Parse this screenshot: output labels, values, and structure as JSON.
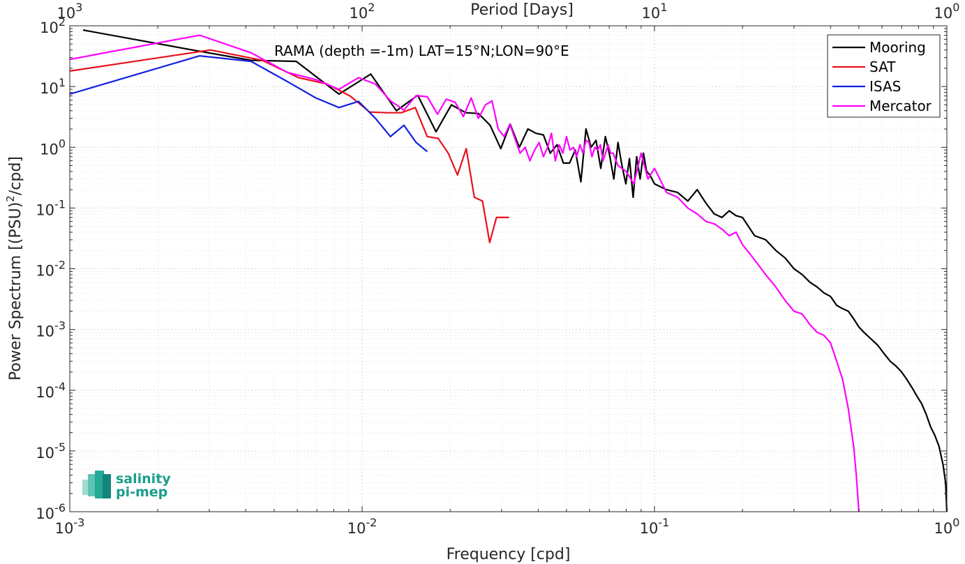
{
  "chart_data": {
    "type": "line",
    "title": "",
    "annotation": "RAMA (depth =-1m) LAT=15°N;LON=90°E",
    "xlabel": "Frequency [cpd]",
    "ylabel": "Power Spectrum [(PSU)²/cpd]",
    "x2label": "Period [Days]",
    "xscale": "log",
    "yscale": "log",
    "xlim": [
      0.001,
      1
    ],
    "ylim": [
      1e-06,
      100
    ],
    "grid": true,
    "minor_grid": true,
    "legend_position": "top-right",
    "x_tick_labels": [
      "10-3",
      "10-2",
      "10-1",
      "100"
    ],
    "x2_tick_labels": [
      "103",
      "102",
      "101",
      "100"
    ],
    "y_tick_labels": [
      "102",
      "101",
      "100",
      "10-1",
      "10-2",
      "10-3",
      "10-4",
      "10-5",
      "10-6"
    ],
    "series": [
      {
        "name": "Mooring",
        "color": "#000000",
        "x": [
          0.00111,
          0.00278,
          0.00417,
          0.00595,
          0.00833,
          0.0107,
          0.0131,
          0.0155,
          0.0179,
          0.0202,
          0.0226,
          0.025,
          0.0274,
          0.0298,
          0.0321,
          0.0345,
          0.0369,
          0.0393,
          0.0417,
          0.044,
          0.0464,
          0.0488,
          0.0512,
          0.0536,
          0.056,
          0.0583,
          0.0607,
          0.0631,
          0.0655,
          0.0679,
          0.0702,
          0.0726,
          0.075,
          0.0774,
          0.0798,
          0.0821,
          0.0845,
          0.0869,
          0.0893,
          0.0917,
          0.094,
          0.0964,
          0.1,
          0.11,
          0.12,
          0.13,
          0.14,
          0.15,
          0.16,
          0.17,
          0.18,
          0.19,
          0.2,
          0.22,
          0.24,
          0.26,
          0.28,
          0.3,
          0.32,
          0.34,
          0.36,
          0.38,
          0.4,
          0.42,
          0.44,
          0.46,
          0.48,
          0.5,
          0.52,
          0.55,
          0.58,
          0.61,
          0.64,
          0.67,
          0.7,
          0.73,
          0.76,
          0.79,
          0.82,
          0.85,
          0.88,
          0.91,
          0.94,
          0.97,
          0.99,
          1.0
        ],
        "values": [
          85,
          38,
          27,
          26,
          7.5,
          16,
          4,
          7.2,
          1.8,
          5,
          3.7,
          3.6,
          2.3,
          0.95,
          2.4,
          1.0,
          2.0,
          1.7,
          1.6,
          0.8,
          1.1,
          0.55,
          0.55,
          0.9,
          0.27,
          2.0,
          1.0,
          1.3,
          0.45,
          1.5,
          0.75,
          0.3,
          1.2,
          0.5,
          0.25,
          0.65,
          0.15,
          0.7,
          0.3,
          0.8,
          0.4,
          0.35,
          0.25,
          0.2,
          0.18,
          0.13,
          0.2,
          0.12,
          0.08,
          0.07,
          0.09,
          0.075,
          0.07,
          0.035,
          0.03,
          0.02,
          0.015,
          0.01,
          0.008,
          0.006,
          0.005,
          0.004,
          0.0035,
          0.0025,
          0.0022,
          0.002,
          0.0015,
          0.0011,
          0.0009,
          0.0007,
          0.00055,
          0.0004,
          0.0003,
          0.00025,
          0.0002,
          0.00015,
          0.00011,
          8e-05,
          6e-05,
          4e-05,
          2.5e-05,
          1.8e-05,
          1.2e-05,
          6e-06,
          3e-06,
          1e-06
        ]
      },
      {
        "name": "SAT",
        "color": "#e8101c",
        "x": [
          0.001,
          0.00303,
          0.00455,
          0.00606,
          0.00758,
          0.00909,
          0.0106,
          0.0121,
          0.0136,
          0.0152,
          0.0167,
          0.0182,
          0.0197,
          0.0212,
          0.0227,
          0.0242,
          0.0258,
          0.0273,
          0.0288,
          0.0303,
          0.0318
        ],
        "values": [
          18,
          40,
          27,
          14,
          11,
          7,
          3.8,
          3.7,
          3.7,
          4.5,
          1.5,
          1.4,
          0.8,
          0.35,
          0.95,
          0.15,
          0.13,
          0.027,
          0.07,
          0.07,
          0.07
        ]
      },
      {
        "name": "ISAS",
        "color": "#1020e0",
        "x": [
          0.001,
          0.00278,
          0.00417,
          0.00556,
          0.00694,
          0.00833,
          0.00972,
          0.0111,
          0.0125,
          0.0139,
          0.0153,
          0.0167
        ],
        "values": [
          7.5,
          32,
          26,
          12,
          6.5,
          4.5,
          5.7,
          3.0,
          1.5,
          2.3,
          1.2,
          0.85
        ]
      },
      {
        "name": "Mercator",
        "color": "#ff00ff",
        "x": [
          0.001,
          0.00278,
          0.00417,
          0.00556,
          0.00694,
          0.00833,
          0.00972,
          0.0111,
          0.0125,
          0.0139,
          0.0153,
          0.0167,
          0.0181,
          0.0194,
          0.0208,
          0.0222,
          0.0236,
          0.025,
          0.0264,
          0.0278,
          0.0292,
          0.0306,
          0.032,
          0.0333,
          0.0347,
          0.0361,
          0.0375,
          0.0389,
          0.0403,
          0.0417,
          0.0431,
          0.0444,
          0.0458,
          0.0472,
          0.0486,
          0.05,
          0.0514,
          0.0528,
          0.0542,
          0.0556,
          0.0569,
          0.0583,
          0.0597,
          0.0611,
          0.0625,
          0.0639,
          0.0653,
          0.0667,
          0.068,
          0.0694,
          0.0708,
          0.0722,
          0.075,
          0.08,
          0.085,
          0.09,
          0.095,
          0.1,
          0.11,
          0.12,
          0.13,
          0.14,
          0.15,
          0.16,
          0.17,
          0.18,
          0.19,
          0.2,
          0.22,
          0.24,
          0.26,
          0.28,
          0.3,
          0.32,
          0.34,
          0.36,
          0.38,
          0.4,
          0.42,
          0.44,
          0.46,
          0.48,
          0.49,
          0.5
        ],
        "values": [
          28,
          70,
          36,
          17,
          13,
          9,
          14,
          11,
          5.8,
          4.1,
          7.1,
          6.8,
          3.5,
          6.2,
          5.5,
          3.2,
          6.5,
          3.0,
          5.0,
          5.8,
          2.0,
          1.5,
          2.4,
          1.4,
          0.8,
          1.0,
          0.6,
          0.9,
          1.2,
          0.7,
          1.0,
          1.7,
          0.6,
          1.1,
          0.8,
          1.5,
          0.9,
          1.0,
          0.7,
          1.1,
          0.8,
          1.3,
          1.2,
          0.7,
          1.0,
          0.9,
          1.1,
          0.6,
          0.8,
          1.1,
          0.8,
          0.8,
          0.5,
          0.4,
          0.25,
          0.8,
          0.3,
          0.45,
          0.18,
          0.15,
          0.1,
          0.08,
          0.06,
          0.055,
          0.045,
          0.035,
          0.04,
          0.025,
          0.014,
          0.008,
          0.005,
          0.003,
          0.002,
          0.0018,
          0.0012,
          0.0009,
          0.0008,
          0.0006,
          0.0003,
          0.00015,
          5e-05,
          1.2e-05,
          4e-06,
          1e-06
        ]
      }
    ]
  },
  "logo": {
    "line1": "salinity",
    "line2": "pi-mep"
  }
}
